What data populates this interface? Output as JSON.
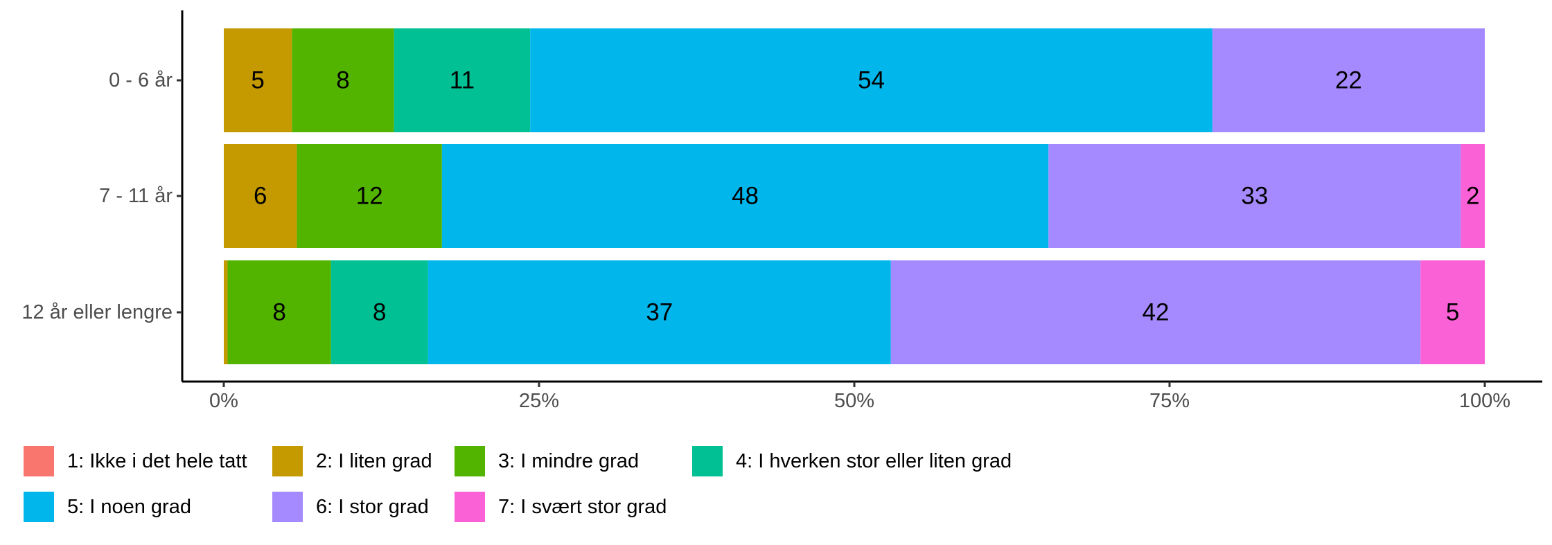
{
  "chart_data": {
    "type": "bar",
    "orientation": "horizontal",
    "stacked": true,
    "normalized": true,
    "categories": [
      "0 - 6 år",
      "7 - 11 år",
      "12 år eller lengre"
    ],
    "series": [
      {
        "name": "1: Ikke i det hele tatt",
        "color": "#F8766D",
        "values": [
          0,
          0,
          0
        ],
        "labels": [
          "",
          "",
          ""
        ]
      },
      {
        "name": "2: I liten grad",
        "color": "#C49A00",
        "values": [
          5.4,
          5.8,
          0.3
        ],
        "labels": [
          "5",
          "6",
          ""
        ]
      },
      {
        "name": "3: I mindre grad",
        "color": "#53B400",
        "values": [
          8.1,
          11.5,
          8.2
        ],
        "labels": [
          "8",
          "12",
          "8"
        ]
      },
      {
        "name": "4: I hverken stor eller liten grad",
        "color": "#00C094",
        "values": [
          10.8,
          0,
          7.7
        ],
        "labels": [
          "11",
          "",
          "8"
        ]
      },
      {
        "name": "5: I noen grad",
        "color": "#00B6EB",
        "values": [
          54.1,
          48.1,
          36.7
        ],
        "labels": [
          "54",
          "48",
          "37"
        ]
      },
      {
        "name": "6: I stor grad",
        "color": "#A58AFF",
        "values": [
          21.6,
          32.7,
          42.0
        ],
        "labels": [
          "22",
          "33",
          "42"
        ]
      },
      {
        "name": "7: I svært stor grad",
        "color": "#FB61D7",
        "values": [
          0,
          1.9,
          5.1
        ],
        "labels": [
          "",
          "2",
          "5"
        ]
      }
    ],
    "x_ticks": [
      "0%",
      "25%",
      "50%",
      "75%",
      "100%"
    ],
    "x_tick_values": [
      0,
      25,
      50,
      75,
      100
    ],
    "xlim": [
      0,
      100
    ],
    "xlabel": "",
    "ylabel": "",
    "title": "",
    "grid": false,
    "legend_position": "bottom-left"
  }
}
